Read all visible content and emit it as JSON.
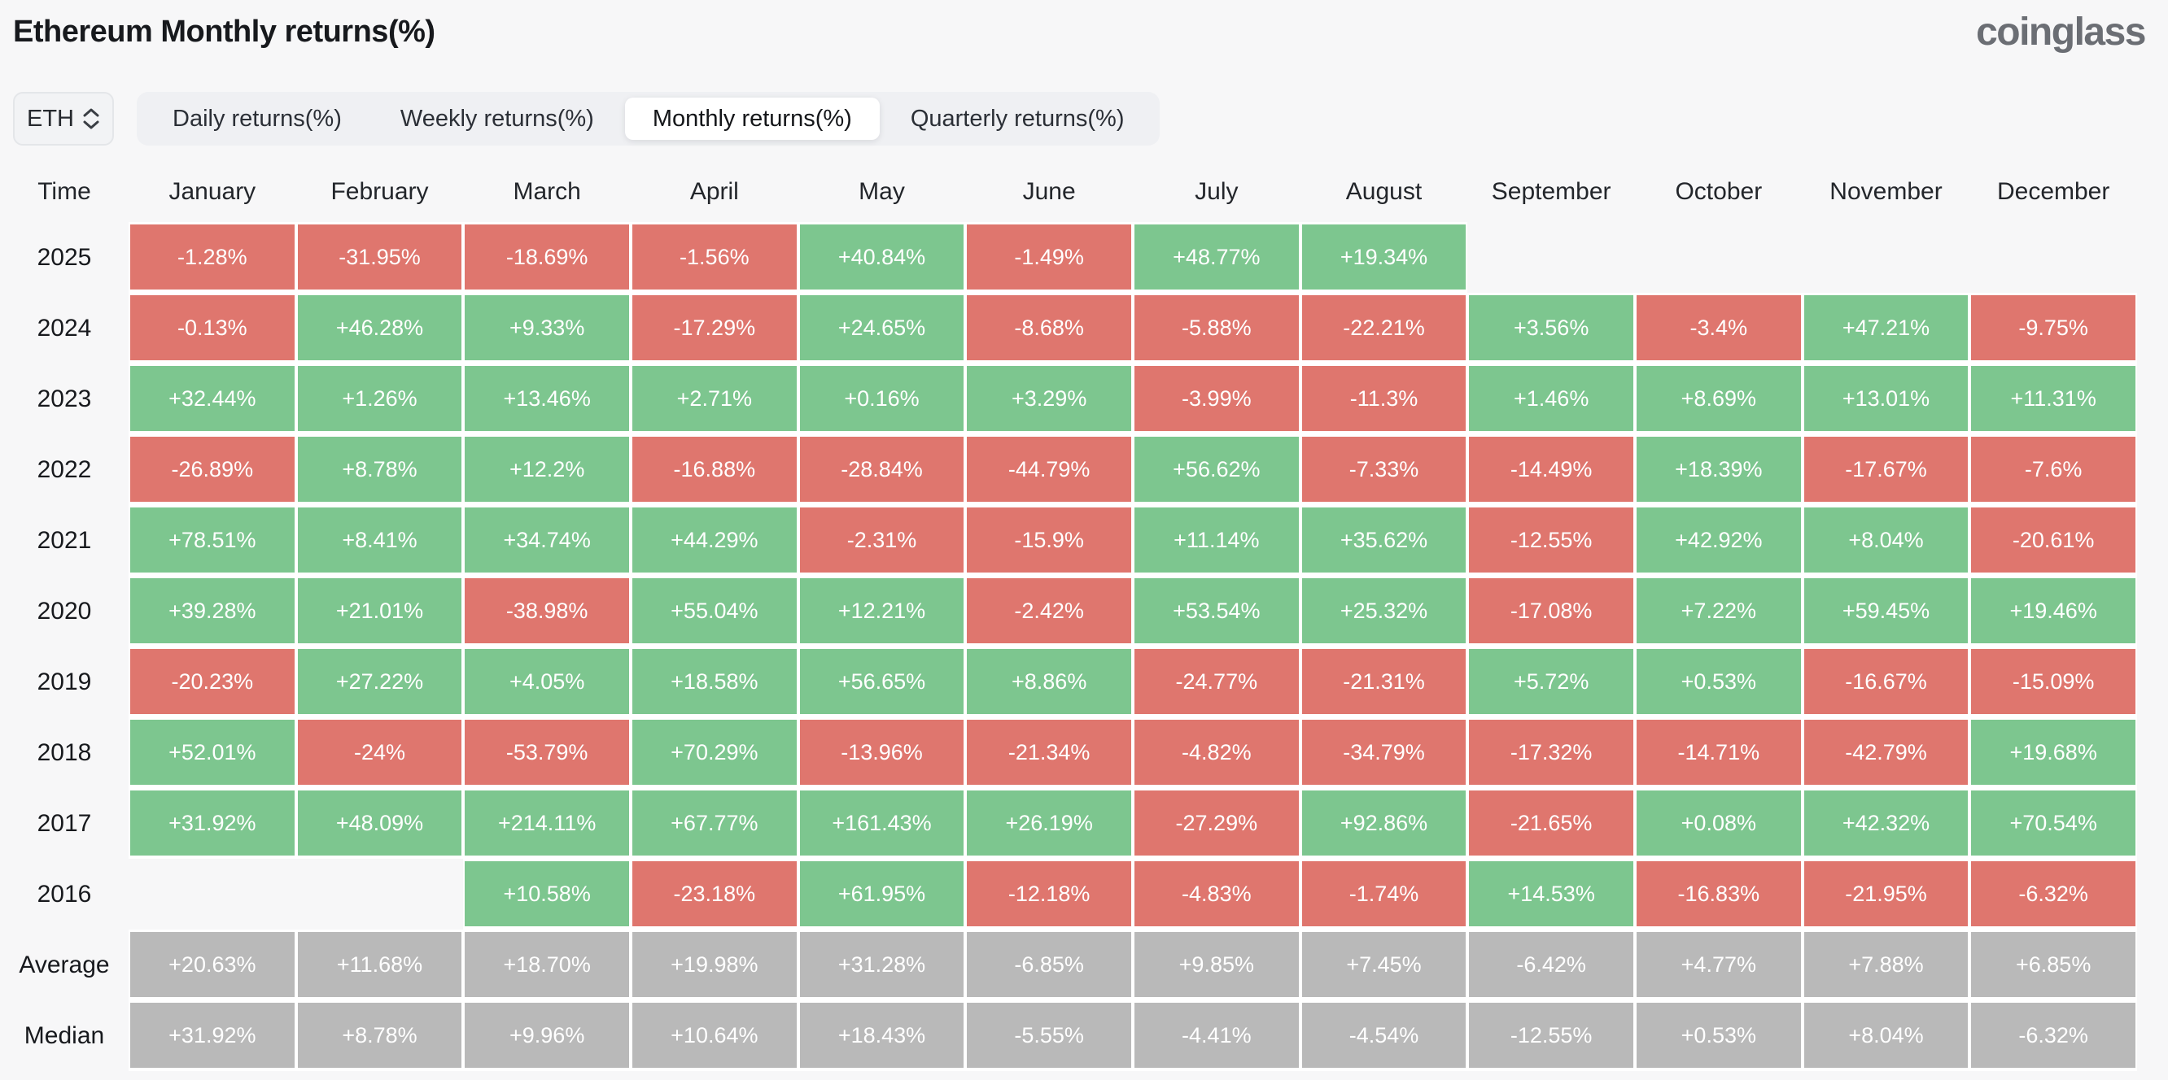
{
  "header": {
    "title": "Ethereum Monthly returns(%)",
    "logo": "coinglass"
  },
  "controls": {
    "symbol": "ETH",
    "updown_icon": "up-down-chevrons",
    "tabs": [
      {
        "label": "Daily returns(%)",
        "active": false
      },
      {
        "label": "Weekly returns(%)",
        "active": false
      },
      {
        "label": "Monthly returns(%)",
        "active": true
      },
      {
        "label": "Quarterly returns(%)",
        "active": false
      }
    ]
  },
  "colors": {
    "green": "#7dc68f",
    "red": "#df766e",
    "gray": "#b9b9b9"
  },
  "table": {
    "columns": [
      "Time",
      "January",
      "February",
      "March",
      "April",
      "May",
      "June",
      "July",
      "August",
      "September",
      "October",
      "November",
      "December"
    ],
    "rows": [
      {
        "label": "2025",
        "cells": [
          {
            "v": "-1.28%",
            "c": "red"
          },
          {
            "v": "-31.95%",
            "c": "red"
          },
          {
            "v": "-18.69%",
            "c": "red"
          },
          {
            "v": "-1.56%",
            "c": "red"
          },
          {
            "v": "+40.84%",
            "c": "green"
          },
          {
            "v": "-1.49%",
            "c": "red"
          },
          {
            "v": "+48.77%",
            "c": "green"
          },
          {
            "v": "+19.34%",
            "c": "green"
          },
          {
            "v": "",
            "c": "none"
          },
          {
            "v": "",
            "c": "none"
          },
          {
            "v": "",
            "c": "none"
          },
          {
            "v": "",
            "c": "none"
          }
        ]
      },
      {
        "label": "2024",
        "cells": [
          {
            "v": "-0.13%",
            "c": "red"
          },
          {
            "v": "+46.28%",
            "c": "green"
          },
          {
            "v": "+9.33%",
            "c": "green"
          },
          {
            "v": "-17.29%",
            "c": "red"
          },
          {
            "v": "+24.65%",
            "c": "green"
          },
          {
            "v": "-8.68%",
            "c": "red"
          },
          {
            "v": "-5.88%",
            "c": "red"
          },
          {
            "v": "-22.21%",
            "c": "red"
          },
          {
            "v": "+3.56%",
            "c": "green"
          },
          {
            "v": "-3.4%",
            "c": "red"
          },
          {
            "v": "+47.21%",
            "c": "green"
          },
          {
            "v": "-9.75%",
            "c": "red"
          }
        ]
      },
      {
        "label": "2023",
        "cells": [
          {
            "v": "+32.44%",
            "c": "green"
          },
          {
            "v": "+1.26%",
            "c": "green"
          },
          {
            "v": "+13.46%",
            "c": "green"
          },
          {
            "v": "+2.71%",
            "c": "green"
          },
          {
            "v": "+0.16%",
            "c": "green"
          },
          {
            "v": "+3.29%",
            "c": "green"
          },
          {
            "v": "-3.99%",
            "c": "red"
          },
          {
            "v": "-11.3%",
            "c": "red"
          },
          {
            "v": "+1.46%",
            "c": "green"
          },
          {
            "v": "+8.69%",
            "c": "green"
          },
          {
            "v": "+13.01%",
            "c": "green"
          },
          {
            "v": "+11.31%",
            "c": "green"
          }
        ]
      },
      {
        "label": "2022",
        "cells": [
          {
            "v": "-26.89%",
            "c": "red"
          },
          {
            "v": "+8.78%",
            "c": "green"
          },
          {
            "v": "+12.2%",
            "c": "green"
          },
          {
            "v": "-16.88%",
            "c": "red"
          },
          {
            "v": "-28.84%",
            "c": "red"
          },
          {
            "v": "-44.79%",
            "c": "red"
          },
          {
            "v": "+56.62%",
            "c": "green"
          },
          {
            "v": "-7.33%",
            "c": "red"
          },
          {
            "v": "-14.49%",
            "c": "red"
          },
          {
            "v": "+18.39%",
            "c": "green"
          },
          {
            "v": "-17.67%",
            "c": "red"
          },
          {
            "v": "-7.6%",
            "c": "red"
          }
        ]
      },
      {
        "label": "2021",
        "cells": [
          {
            "v": "+78.51%",
            "c": "green"
          },
          {
            "v": "+8.41%",
            "c": "green"
          },
          {
            "v": "+34.74%",
            "c": "green"
          },
          {
            "v": "+44.29%",
            "c": "green"
          },
          {
            "v": "-2.31%",
            "c": "red"
          },
          {
            "v": "-15.9%",
            "c": "red"
          },
          {
            "v": "+11.14%",
            "c": "green"
          },
          {
            "v": "+35.62%",
            "c": "green"
          },
          {
            "v": "-12.55%",
            "c": "red"
          },
          {
            "v": "+42.92%",
            "c": "green"
          },
          {
            "v": "+8.04%",
            "c": "green"
          },
          {
            "v": "-20.61%",
            "c": "red"
          }
        ]
      },
      {
        "label": "2020",
        "cells": [
          {
            "v": "+39.28%",
            "c": "green"
          },
          {
            "v": "+21.01%",
            "c": "green"
          },
          {
            "v": "-38.98%",
            "c": "red"
          },
          {
            "v": "+55.04%",
            "c": "green"
          },
          {
            "v": "+12.21%",
            "c": "green"
          },
          {
            "v": "-2.42%",
            "c": "red"
          },
          {
            "v": "+53.54%",
            "c": "green"
          },
          {
            "v": "+25.32%",
            "c": "green"
          },
          {
            "v": "-17.08%",
            "c": "red"
          },
          {
            "v": "+7.22%",
            "c": "green"
          },
          {
            "v": "+59.45%",
            "c": "green"
          },
          {
            "v": "+19.46%",
            "c": "green"
          }
        ]
      },
      {
        "label": "2019",
        "cells": [
          {
            "v": "-20.23%",
            "c": "red"
          },
          {
            "v": "+27.22%",
            "c": "green"
          },
          {
            "v": "+4.05%",
            "c": "green"
          },
          {
            "v": "+18.58%",
            "c": "green"
          },
          {
            "v": "+56.65%",
            "c": "green"
          },
          {
            "v": "+8.86%",
            "c": "green"
          },
          {
            "v": "-24.77%",
            "c": "red"
          },
          {
            "v": "-21.31%",
            "c": "red"
          },
          {
            "v": "+5.72%",
            "c": "green"
          },
          {
            "v": "+0.53%",
            "c": "green"
          },
          {
            "v": "-16.67%",
            "c": "red"
          },
          {
            "v": "-15.09%",
            "c": "red"
          }
        ]
      },
      {
        "label": "2018",
        "cells": [
          {
            "v": "+52.01%",
            "c": "green"
          },
          {
            "v": "-24%",
            "c": "red"
          },
          {
            "v": "-53.79%",
            "c": "red"
          },
          {
            "v": "+70.29%",
            "c": "green"
          },
          {
            "v": "-13.96%",
            "c": "red"
          },
          {
            "v": "-21.34%",
            "c": "red"
          },
          {
            "v": "-4.82%",
            "c": "red"
          },
          {
            "v": "-34.79%",
            "c": "red"
          },
          {
            "v": "-17.32%",
            "c": "red"
          },
          {
            "v": "-14.71%",
            "c": "red"
          },
          {
            "v": "-42.79%",
            "c": "red"
          },
          {
            "v": "+19.68%",
            "c": "green"
          }
        ]
      },
      {
        "label": "2017",
        "cells": [
          {
            "v": "+31.92%",
            "c": "green"
          },
          {
            "v": "+48.09%",
            "c": "green"
          },
          {
            "v": "+214.11%",
            "c": "green"
          },
          {
            "v": "+67.77%",
            "c": "green"
          },
          {
            "v": "+161.43%",
            "c": "green"
          },
          {
            "v": "+26.19%",
            "c": "green"
          },
          {
            "v": "-27.29%",
            "c": "red"
          },
          {
            "v": "+92.86%",
            "c": "green"
          },
          {
            "v": "-21.65%",
            "c": "red"
          },
          {
            "v": "+0.08%",
            "c": "green"
          },
          {
            "v": "+42.32%",
            "c": "green"
          },
          {
            "v": "+70.54%",
            "c": "green"
          }
        ]
      },
      {
        "label": "2016",
        "cells": [
          {
            "v": "",
            "c": "none"
          },
          {
            "v": "",
            "c": "none"
          },
          {
            "v": "+10.58%",
            "c": "green"
          },
          {
            "v": "-23.18%",
            "c": "red"
          },
          {
            "v": "+61.95%",
            "c": "green"
          },
          {
            "v": "-12.18%",
            "c": "red"
          },
          {
            "v": "-4.83%",
            "c": "red"
          },
          {
            "v": "-1.74%",
            "c": "red"
          },
          {
            "v": "+14.53%",
            "c": "green"
          },
          {
            "v": "-16.83%",
            "c": "red"
          },
          {
            "v": "-21.95%",
            "c": "red"
          },
          {
            "v": "-6.32%",
            "c": "red"
          }
        ]
      },
      {
        "label": "Average",
        "cells": [
          {
            "v": "+20.63%",
            "c": "gray"
          },
          {
            "v": "+11.68%",
            "c": "gray"
          },
          {
            "v": "+18.70%",
            "c": "gray"
          },
          {
            "v": "+19.98%",
            "c": "gray"
          },
          {
            "v": "+31.28%",
            "c": "gray"
          },
          {
            "v": "-6.85%",
            "c": "gray"
          },
          {
            "v": "+9.85%",
            "c": "gray"
          },
          {
            "v": "+7.45%",
            "c": "gray"
          },
          {
            "v": "-6.42%",
            "c": "gray"
          },
          {
            "v": "+4.77%",
            "c": "gray"
          },
          {
            "v": "+7.88%",
            "c": "gray"
          },
          {
            "v": "+6.85%",
            "c": "gray"
          }
        ]
      },
      {
        "label": "Median",
        "cells": [
          {
            "v": "+31.92%",
            "c": "gray"
          },
          {
            "v": "+8.78%",
            "c": "gray"
          },
          {
            "v": "+9.96%",
            "c": "gray"
          },
          {
            "v": "+10.64%",
            "c": "gray"
          },
          {
            "v": "+18.43%",
            "c": "gray"
          },
          {
            "v": "-5.55%",
            "c": "gray"
          },
          {
            "v": "-4.41%",
            "c": "gray"
          },
          {
            "v": "-4.54%",
            "c": "gray"
          },
          {
            "v": "-12.55%",
            "c": "gray"
          },
          {
            "v": "+0.53%",
            "c": "gray"
          },
          {
            "v": "+8.04%",
            "c": "gray"
          },
          {
            "v": "-6.32%",
            "c": "gray"
          }
        ]
      }
    ]
  }
}
